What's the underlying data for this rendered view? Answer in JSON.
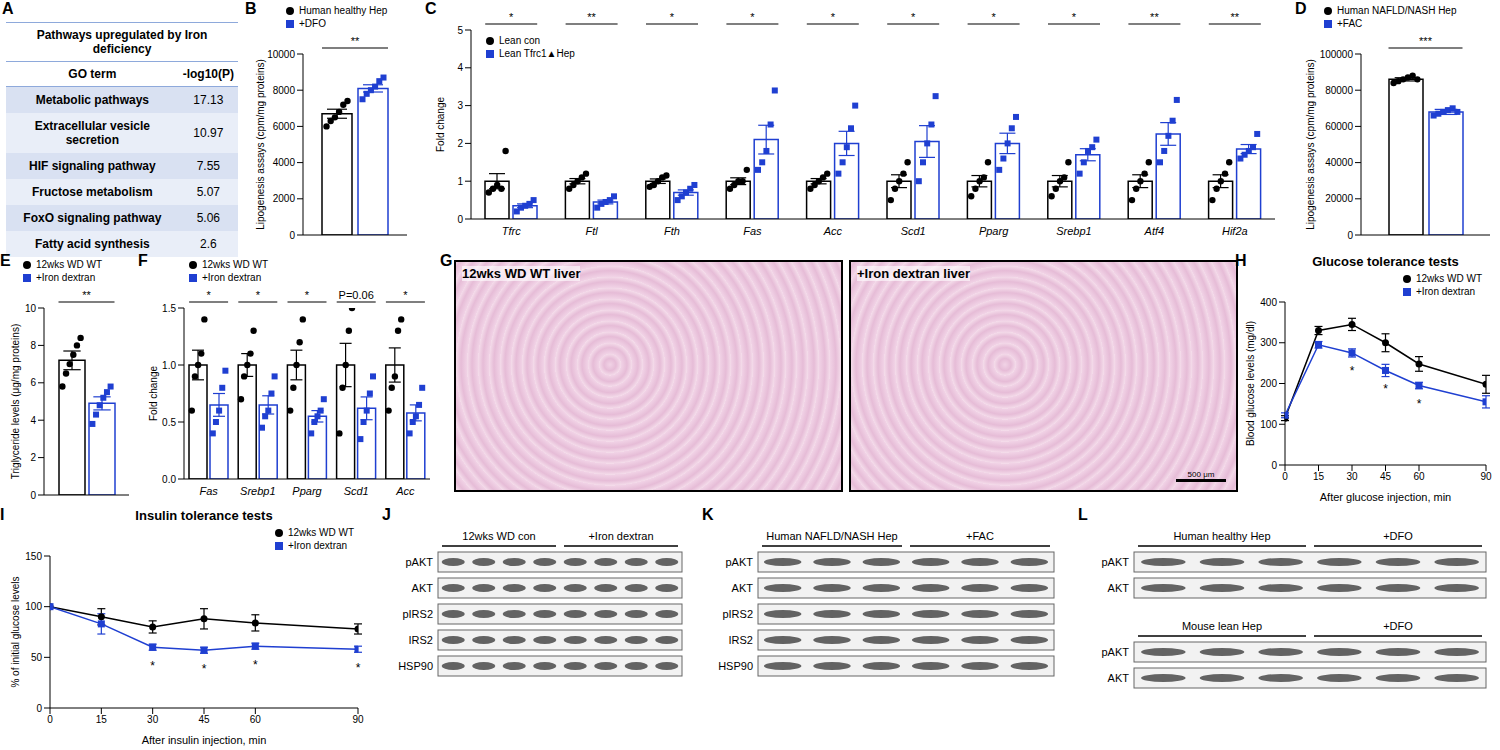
{
  "table": {
    "panel": "A",
    "title": "Pathways upregulated by Iron deficiency",
    "columns": [
      "GO term",
      "-log10(P)"
    ],
    "rows": [
      [
        "Metabolic pathways",
        17.13
      ],
      [
        "Extracellular vesicle secretion",
        10.97
      ],
      [
        "HIF signaling pathway",
        7.55
      ],
      [
        "Fructose metabolism",
        5.07
      ],
      [
        "FoxO signaling pathway",
        5.06
      ],
      [
        "Fatty acid synthesis",
        2.6
      ]
    ]
  },
  "chart_data": [
    {
      "panel": "B",
      "type": "bar",
      "categories": [
        null
      ],
      "tick_labels": "y",
      "y_label": "Lipogenesis assays (cpm/mg proteins)",
      "ylim": [
        0,
        10000
      ],
      "yticks": [
        0,
        2000,
        4000,
        6000,
        8000,
        10000
      ],
      "legend": "upper left",
      "significance": [
        "**"
      ],
      "series": [
        {
          "name": "Human healthy Hep",
          "color": "#000000",
          "marker": "circle",
          "values": [
            6700
          ],
          "sem": [
            250
          ],
          "points": [
            [
              6000,
              6300,
              6500,
              6800,
              7200,
              7400
            ]
          ]
        },
        {
          "name": "+DFO",
          "color": "#1f3fd1",
          "marker": "square",
          "values": [
            8100
          ],
          "sem": [
            200
          ],
          "points": [
            [
              7500,
              7800,
              8000,
              8200,
              8500,
              8700
            ]
          ]
        }
      ]
    },
    {
      "panel": "C",
      "type": "bar",
      "categories": [
        "Tfrc",
        "Ftl",
        "Fth",
        "Fas",
        "Acc",
        "Scd1",
        "Pparg",
        "Srebp1",
        "Atf4",
        "Hif2a"
      ],
      "y_label": "Fold change",
      "ylim": [
        0,
        5
      ],
      "yticks": [
        0,
        1,
        2,
        3,
        4,
        5
      ],
      "legend": "upper left",
      "significance": [
        "*",
        "**",
        "*",
        "*",
        "*",
        "*",
        "*",
        "*",
        "**",
        "**"
      ],
      "series": [
        {
          "name": "Lean con",
          "color": "#000000",
          "marker": "circle",
          "values": [
            1,
            1,
            1,
            1,
            1,
            1,
            1,
            1,
            1,
            1
          ],
          "sem": [
            0.2,
            0.07,
            0.06,
            0.09,
            0.07,
            0.17,
            0.15,
            0.15,
            0.17,
            0.17
          ],
          "points": [
            [
              0.7,
              0.8,
              0.9,
              0.8,
              1.8
            ],
            [
              0.8,
              0.9,
              1.0,
              1.1,
              1.2
            ],
            [
              0.85,
              0.9,
              1.0,
              1.1,
              1.15
            ],
            [
              0.8,
              0.9,
              1.0,
              1.0,
              1.3
            ],
            [
              0.8,
              0.9,
              1.0,
              1.1,
              1.2
            ],
            [
              0.5,
              0.8,
              1.0,
              1.2,
              1.5
            ],
            [
              0.6,
              0.8,
              1.0,
              1.1,
              1.5
            ],
            [
              0.6,
              0.8,
              1.0,
              1.1,
              1.5
            ],
            [
              0.5,
              0.8,
              1.0,
              1.2,
              1.5
            ],
            [
              0.5,
              0.8,
              1.0,
              1.2,
              1.5
            ]
          ]
        },
        {
          "name": "Lean Tfrc1▲Hep",
          "color": "#1f3fd1",
          "marker": "square",
          "values": [
            0.35,
            0.45,
            0.7,
            2.1,
            2.0,
            2.05,
            2.0,
            1.7,
            2.25,
            1.85
          ],
          "sem": [
            0.05,
            0.05,
            0.07,
            0.38,
            0.32,
            0.42,
            0.27,
            0.16,
            0.3,
            0.12
          ],
          "points": [
            [
              0.2,
              0.3,
              0.35,
              0.4,
              0.5
            ],
            [
              0.3,
              0.4,
              0.45,
              0.5,
              0.6
            ],
            [
              0.5,
              0.6,
              0.7,
              0.8,
              0.9
            ],
            [
              1.3,
              1.5,
              1.8,
              2.5,
              3.4
            ],
            [
              1.2,
              1.5,
              1.9,
              2.4,
              3.0
            ],
            [
              1.0,
              1.5,
              2.0,
              2.5,
              3.25
            ],
            [
              1.3,
              1.6,
              2.0,
              2.4,
              2.7
            ],
            [
              1.2,
              1.5,
              1.8,
              1.9,
              2.1
            ],
            [
              1.5,
              1.8,
              2.2,
              2.6,
              3.15
            ],
            [
              1.6,
              1.7,
              1.8,
              1.9,
              2.25
            ]
          ]
        }
      ]
    },
    {
      "panel": "D",
      "type": "bar",
      "categories": [
        null
      ],
      "tick_labels": "y",
      "y_label": "Lipogenesis assays (cpm/mg proteins)",
      "ylim": [
        0,
        100000
      ],
      "yticks": [
        0,
        20000,
        40000,
        60000,
        80000,
        100000
      ],
      "legend": "upper left",
      "significance": [
        "***"
      ],
      "series": [
        {
          "name": "Human NAFLD/NASH Hep",
          "color": "#000000",
          "marker": "circle",
          "values": [
            86000
          ],
          "sem": [
            900
          ],
          "points": [
            [
              84000,
              85000,
              86000,
              87000,
              88000,
              86000
            ]
          ]
        },
        {
          "name": "+FAC",
          "color": "#1f3fd1",
          "marker": "square",
          "values": [
            68000
          ],
          "sem": [
            1400
          ],
          "points": [
            [
              66000,
              67000,
              68000,
              69000,
              70000,
              68000
            ]
          ]
        }
      ]
    },
    {
      "panel": "E",
      "type": "bar",
      "categories": [
        null
      ],
      "tick_labels": "y",
      "y_label": "Triglyceride levels (μg/mg proteins)",
      "ylim": [
        0,
        10
      ],
      "yticks": [
        0,
        2,
        4,
        6,
        8,
        10
      ],
      "legend": "upper left",
      "significance": [
        "**"
      ],
      "series": [
        {
          "name": "12wks WD WT",
          "color": "#000000",
          "marker": "circle",
          "values": [
            7.2
          ],
          "sem": [
            0.5
          ],
          "points": [
            [
              5.8,
              6.5,
              7.0,
              7.5,
              8.0,
              8.4
            ]
          ]
        },
        {
          "name": "+Iron dextran",
          "color": "#1f3fd1",
          "marker": "square",
          "values": [
            4.9
          ],
          "sem": [
            0.35
          ],
          "points": [
            [
              3.8,
              4.3,
              4.8,
              5.2,
              5.5,
              5.8
            ]
          ]
        }
      ]
    },
    {
      "panel": "F",
      "type": "bar",
      "categories": [
        "Fas",
        "Srebp1",
        "Pparg",
        "Scd1",
        "Acc"
      ],
      "y_label": "Fold change",
      "ylim": [
        0,
        1.5
      ],
      "yticks": [
        {
          "value": 0,
          "label": "0.0"
        },
        0.5,
        {
          "value": 1,
          "label": "1.0"
        },
        1.5
      ],
      "legend": "upper left",
      "significance": [
        "*",
        "*",
        "*",
        "P=0.06",
        "*"
      ],
      "series": [
        {
          "name": "12wks WD WT",
          "color": "#000000",
          "marker": "circle",
          "values": [
            1,
            1,
            1,
            1,
            1
          ],
          "sem": [
            0.13,
            0.1,
            0.13,
            0.19,
            0.15
          ],
          "points": [
            [
              0.6,
              0.9,
              1.0,
              1.1,
              1.4
            ],
            [
              0.7,
              0.9,
              1.0,
              1.1,
              1.3
            ],
            [
              0.6,
              0.8,
              1.0,
              1.2,
              1.4
            ],
            [
              0.4,
              0.8,
              1.0,
              1.3,
              1.5
            ],
            [
              0.6,
              0.8,
              0.9,
              1.3,
              1.4
            ]
          ]
        },
        {
          "name": "+Iron dextran",
          "color": "#1f3fd1",
          "marker": "square",
          "values": [
            0.65,
            0.65,
            0.55,
            0.62,
            0.58
          ],
          "sem": [
            0.1,
            0.08,
            0.05,
            0.1,
            0.07
          ],
          "points": [
            [
              0.4,
              0.5,
              0.6,
              0.8,
              0.95
            ],
            [
              0.45,
              0.55,
              0.6,
              0.75,
              0.9
            ],
            [
              0.4,
              0.5,
              0.55,
              0.6,
              0.7
            ],
            [
              0.35,
              0.5,
              0.6,
              0.75,
              0.9
            ],
            [
              0.4,
              0.5,
              0.55,
              0.65,
              0.8
            ]
          ]
        }
      ]
    },
    {
      "panel": "H",
      "type": "line",
      "title": "Glucose tolerance tests",
      "x_label": "After glucose injection, min",
      "y_label": "Blood glucose levels (mg/dl)",
      "x": [
        0,
        15,
        30,
        45,
        60,
        90
      ],
      "xlim": [
        0,
        90
      ],
      "xticks": [
        0,
        15,
        30,
        45,
        60,
        90
      ],
      "ylim": [
        0,
        400
      ],
      "yticks": [
        0,
        100,
        200,
        300,
        400
      ],
      "legend": "upper right",
      "significance": [
        null,
        null,
        "*",
        "*",
        "*",
        null
      ],
      "series": [
        {
          "name": "12wks WD WT",
          "color": "#000000",
          "marker": "circle",
          "values": [
            115,
            330,
            345,
            300,
            248,
            198
          ],
          "sem": [
            6,
            10,
            15,
            22,
            18,
            22
          ]
        },
        {
          "name": "+Iron dextran",
          "color": "#1f3fd1",
          "marker": "square",
          "values": [
            122,
            295,
            275,
            232,
            195,
            155
          ],
          "sem": [
            6,
            8,
            10,
            15,
            8,
            15
          ]
        }
      ]
    },
    {
      "panel": "I",
      "type": "line",
      "title": "Insulin tolerance tests",
      "x_label": "After insulin injection, min",
      "y_label": "% of initial glucose levels",
      "x": [
        0,
        15,
        30,
        45,
        60,
        90
      ],
      "xlim": [
        0,
        90
      ],
      "xticks": [
        0,
        15,
        30,
        45,
        60,
        90
      ],
      "ylim": [
        0,
        150
      ],
      "yticks": [
        0,
        50,
        100,
        150
      ],
      "legend": "upper right",
      "significance": [
        null,
        null,
        "*",
        "*",
        "*",
        "*"
      ],
      "series": [
        {
          "name": "12wks WD WT",
          "color": "#000000",
          "marker": "circle",
          "values": [
            100,
            90,
            80,
            88,
            84,
            78
          ],
          "sem": [
            0,
            8,
            6,
            10,
            8,
            5
          ]
        },
        {
          "name": "+Iron dextran",
          "color": "#1f3fd1",
          "marker": "square",
          "values": [
            100,
            83,
            60,
            57,
            61,
            58
          ],
          "sem": [
            0,
            10,
            3,
            3,
            3,
            3
          ]
        }
      ]
    }
  ],
  "histology": {
    "panel": "G",
    "images": [
      "12wks WD WT liver",
      "+Iron dextran liver"
    ],
    "scale_bar": "500 μm"
  },
  "blots": [
    {
      "panel": "J",
      "blocks": [
        {
          "groups": [
            {
              "label": "12wks WD con",
              "lanes": 4
            },
            {
              "label": "+Iron dextran",
              "lanes": 4
            }
          ],
          "rows": [
            "pAKT",
            "AKT",
            "pIRS2",
            "IRS2",
            "HSP90"
          ]
        }
      ]
    },
    {
      "panel": "K",
      "blocks": [
        {
          "groups": [
            {
              "label": "Human NAFLD/NASH Hep",
              "lanes": 3
            },
            {
              "label": "+FAC",
              "lanes": 3
            }
          ],
          "rows": [
            "pAKT",
            "AKT",
            "pIRS2",
            "IRS2",
            "HSP90"
          ]
        }
      ]
    },
    {
      "panel": "L",
      "blocks": [
        {
          "groups": [
            {
              "label": "Human healthy Hep",
              "lanes": 3
            },
            {
              "label": "+DFO",
              "lanes": 3
            }
          ],
          "rows": [
            "pAKT",
            "AKT"
          ]
        },
        {
          "groups": [
            {
              "label": "Mouse lean Hep",
              "lanes": 3
            },
            {
              "label": "+DFO",
              "lanes": 3
            }
          ],
          "rows": [
            "pAKT",
            "AKT"
          ]
        }
      ]
    }
  ]
}
